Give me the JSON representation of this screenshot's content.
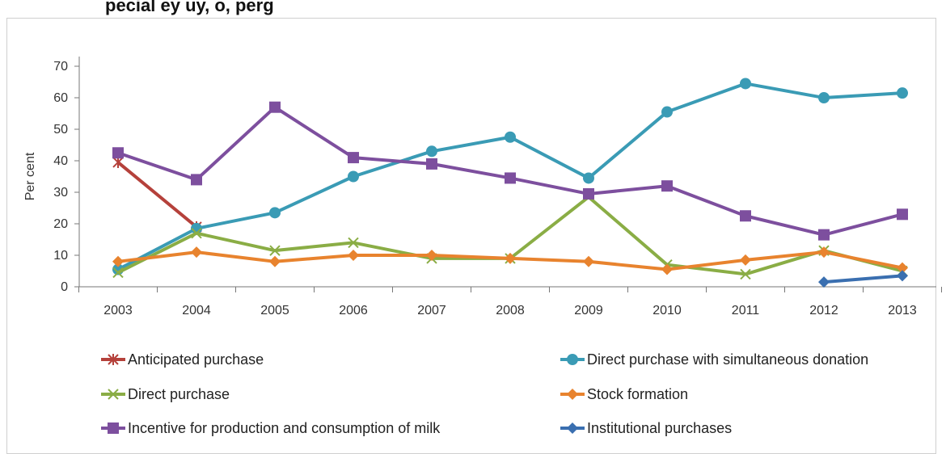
{
  "page": {
    "title_fragment": "pecial ey uy, o, perg"
  },
  "chart_data": {
    "type": "line",
    "title": "",
    "xlabel": "",
    "ylabel": "Per cent",
    "ylim": [
      0,
      70
    ],
    "yticks": [
      0,
      10,
      20,
      30,
      40,
      50,
      60,
      70
    ],
    "grid": false,
    "legend_position": "bottom",
    "categories": [
      "2003",
      "2004",
      "2005",
      "2006",
      "2007",
      "2008",
      "2009",
      "2010",
      "2011",
      "2012",
      "2013"
    ],
    "series": [
      {
        "name": "Anticipated purchase",
        "color": "#b5413b",
        "marker": "asterisk",
        "values": [
          39.5,
          19,
          null,
          null,
          null,
          null,
          null,
          null,
          null,
          null,
          null
        ]
      },
      {
        "name": "Direct purchase with simultaneous donation",
        "color": "#3a9bb5",
        "marker": "circle",
        "values": [
          5.5,
          18.5,
          23.5,
          35,
          43,
          47.5,
          34.5,
          55.5,
          64.5,
          60,
          61.5
        ]
      },
      {
        "name": "Direct purchase",
        "color": "#8aad45",
        "marker": "x",
        "values": [
          4.5,
          17,
          11.5,
          14,
          9,
          9,
          28.5,
          7,
          4,
          11.5,
          5
        ]
      },
      {
        "name": "Stock formation",
        "color": "#e8832e",
        "marker": "diamond",
        "values": [
          8,
          11,
          8,
          10,
          10,
          9,
          8,
          5.5,
          8.5,
          11,
          6
        ]
      },
      {
        "name": "Incentive for production and consumption of milk",
        "color": "#7d4f9e",
        "marker": "square",
        "values": [
          42.5,
          34,
          57,
          41,
          39,
          34.5,
          29.5,
          32,
          22.5,
          16.5,
          23
        ]
      },
      {
        "name": "Institutional purchases",
        "color": "#3a6fb0",
        "marker": "diamond",
        "values": [
          null,
          null,
          null,
          null,
          null,
          null,
          null,
          null,
          null,
          1.5,
          3.5
        ]
      }
    ]
  }
}
